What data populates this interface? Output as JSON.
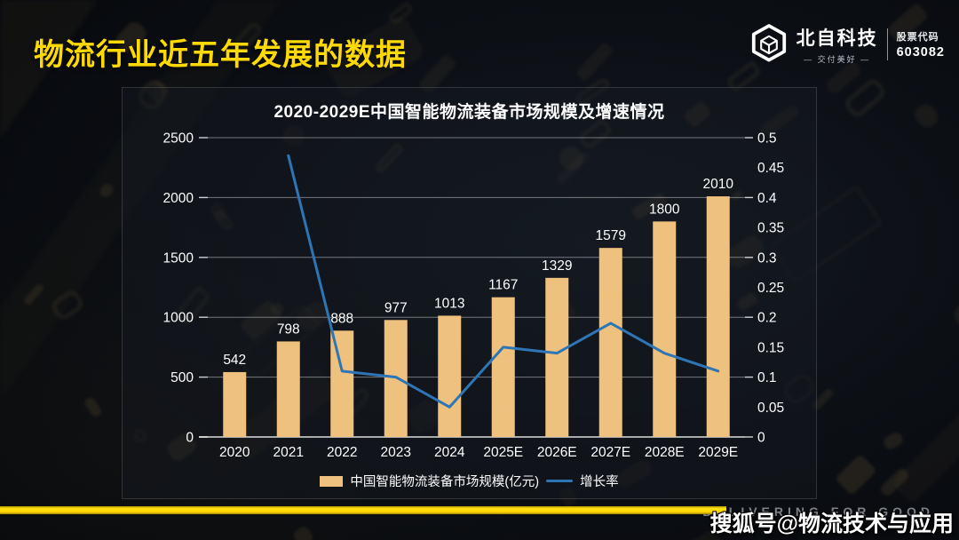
{
  "header": {
    "title": "物流行业近五年发展的数据",
    "brand": {
      "name": "北自科技",
      "tagline": "— 交付美好 —",
      "stock_label": "股票代码",
      "stock_code": "603082"
    }
  },
  "chart_data": {
    "type": "bar",
    "title": "2020-2029E中国智能物流装备市场规模及增速情况",
    "categories": [
      "2020",
      "2021",
      "2022",
      "2023",
      "2024",
      "2025E",
      "2026E",
      "2027E",
      "2028E",
      "2029E"
    ],
    "series": [
      {
        "name": "中国智能物流装备市场规模(亿元)",
        "type": "bar",
        "axis": "left",
        "color": "#efc17e",
        "values": [
          542,
          798,
          888,
          977,
          1013,
          1167,
          1329,
          1579,
          1800,
          2010
        ]
      },
      {
        "name": "增长率",
        "type": "line",
        "axis": "right",
        "color": "#2e75b6",
        "values": [
          null,
          0.47,
          0.11,
          0.1,
          0.05,
          0.15,
          0.14,
          0.19,
          0.14,
          0.11
        ]
      }
    ],
    "left_axis": {
      "min": 0,
      "max": 2500,
      "step": 500,
      "ticks": [
        "0",
        "500",
        "1000",
        "1500",
        "2000",
        "2500"
      ]
    },
    "right_axis": {
      "min": 0,
      "max": 0.5,
      "step": 0.05,
      "ticks": [
        "0",
        "0.05",
        "0.1",
        "0.15",
        "0.2",
        "0.25",
        "0.3",
        "0.35",
        "0.4",
        "0.45",
        "0.5"
      ]
    },
    "grid": true,
    "legend_position": "bottom"
  },
  "footer": {
    "slogan": "DELIVERING FOR GOOD",
    "watermark": "搜狐号@物流技术与应用"
  },
  "colors": {
    "accent_yellow": "#ffd903",
    "bar": "#efc17e",
    "line": "#2e75b6",
    "grid": "rgba(255,255,255,0.45)",
    "text": "#ffffff"
  }
}
